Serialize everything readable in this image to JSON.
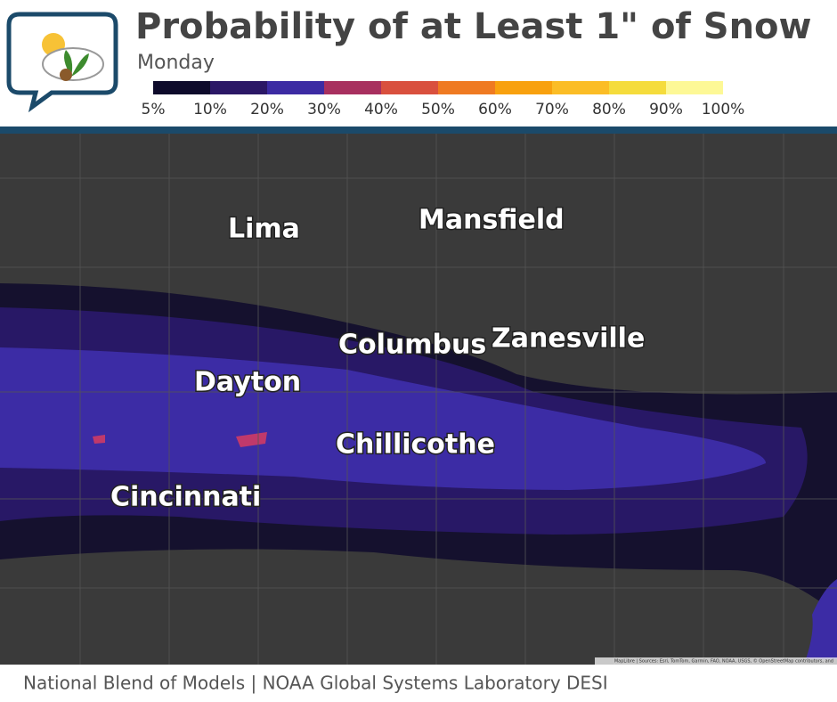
{
  "header": {
    "title": "Probability of at Least 1\" of Snow",
    "subtitle": "Monday"
  },
  "legend": {
    "labels": [
      "5%",
      "10%",
      "20%",
      "30%",
      "40%",
      "50%",
      "60%",
      "70%",
      "80%",
      "90%",
      "100%"
    ],
    "colors": [
      "#0e0b2b",
      "#2b1766",
      "#3c2ba3",
      "#a8305f",
      "#d9503e",
      "#ef7a22",
      "#f8a10f",
      "#fbbd26",
      "#f5dc3c",
      "#fdf896"
    ]
  },
  "map": {
    "cities": [
      "Lima",
      "Mansfield",
      "Columbus",
      "Zanesville",
      "Dayton",
      "Chillicothe",
      "Cincinnati"
    ],
    "attribution": "MapLibre | Sources: Esri, TomTom, Garmin, FAO, NOAA, USGS, © OpenStreetMap contributors, and"
  },
  "footer": {
    "text": "National Blend of Models | NOAA Global Systems Laboratory DESI"
  }
}
